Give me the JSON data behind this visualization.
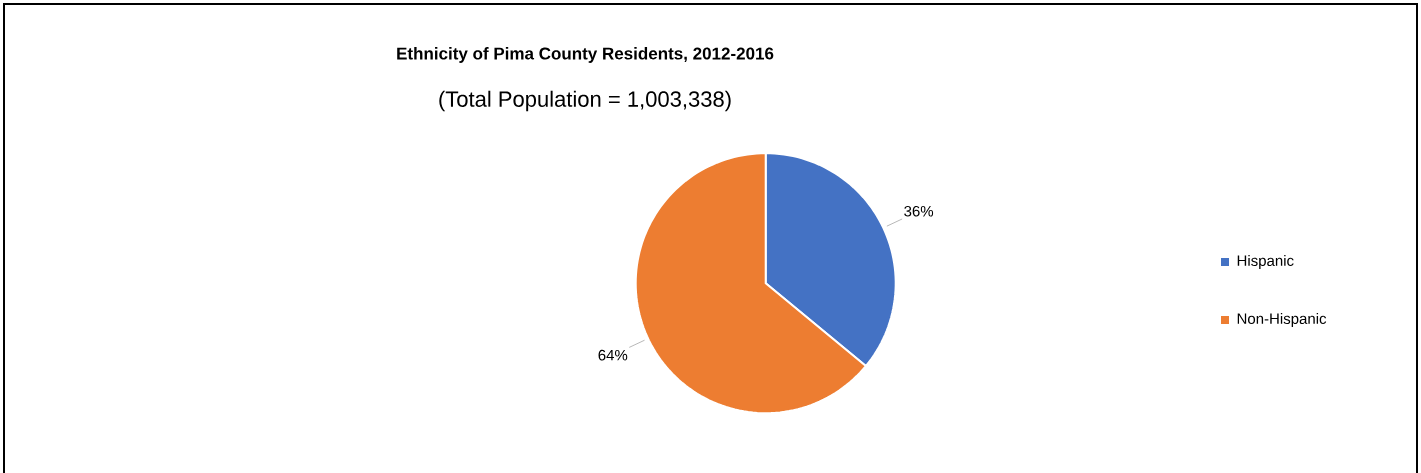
{
  "chart_data": {
    "type": "pie",
    "title": "Ethnicity of Pima County Residents, 2012-2016",
    "subtitle": "(Total Population = 1,003,338)",
    "categories": [
      "Hispanic",
      "Non-Hispanic"
    ],
    "values": [
      36,
      64
    ],
    "colors": [
      "#4472c4",
      "#ed7d31"
    ],
    "value_labels": [
      "36%",
      "64%"
    ],
    "legend": "right"
  }
}
